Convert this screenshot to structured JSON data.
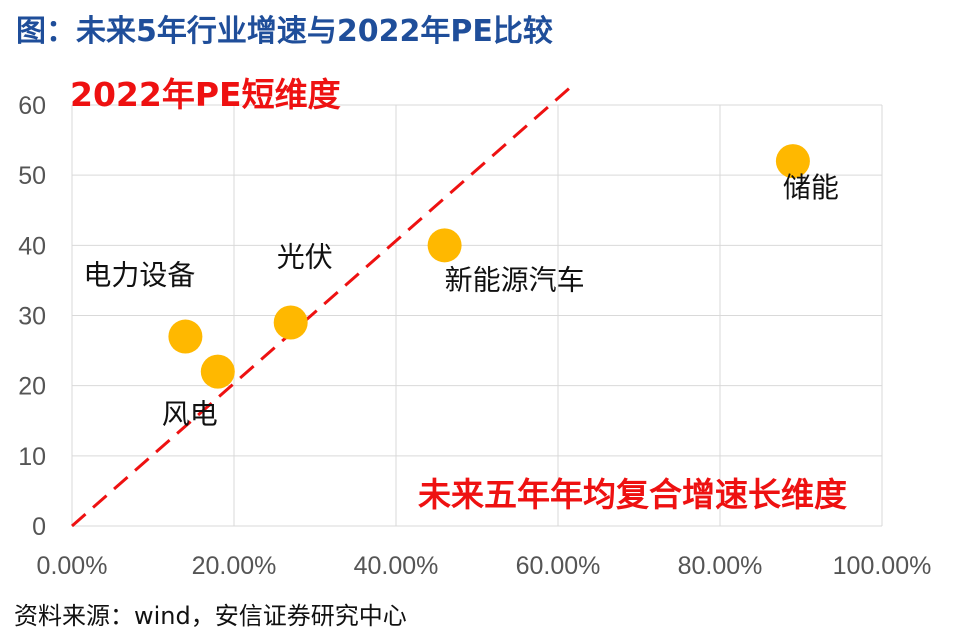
{
  "title": "图：未来5年行业增速与2022年PE比较",
  "source": "资料来源：wind，安信证券研究中心",
  "chart_data": {
    "type": "scatter",
    "title": "图：未来5年行业增速与2022年PE比较",
    "xlabel": "未来五年年均复合增速长维度",
    "ylabel": "2022年PE短维度",
    "xlim": [
      0,
      1.0
    ],
    "ylim": [
      0,
      60
    ],
    "x_ticks": [
      "0.00%",
      "20.00%",
      "40.00%",
      "60.00%",
      "80.00%",
      "100.00%"
    ],
    "y_ticks": [
      "0",
      "10",
      "20",
      "30",
      "40",
      "50",
      "60"
    ],
    "grid": true,
    "points": [
      {
        "label": "电力设备",
        "x": 0.14,
        "y": 27
      },
      {
        "label": "风电",
        "x": 0.18,
        "y": 22
      },
      {
        "label": "光伏",
        "x": 0.27,
        "y": 29
      },
      {
        "label": "新能源汽车",
        "x": 0.46,
        "y": 40
      },
      {
        "label": "储能",
        "x": 0.89,
        "y": 52
      }
    ],
    "reference_line": {
      "style": "dashed",
      "color": "#ee1111",
      "from": [
        0,
        0
      ],
      "to": [
        0.62,
        63
      ]
    },
    "colors": {
      "points": "#ffb800",
      "grid": "#d9d9d9",
      "axis_titles": "#ee1111",
      "title": "#1f4e9a"
    }
  }
}
